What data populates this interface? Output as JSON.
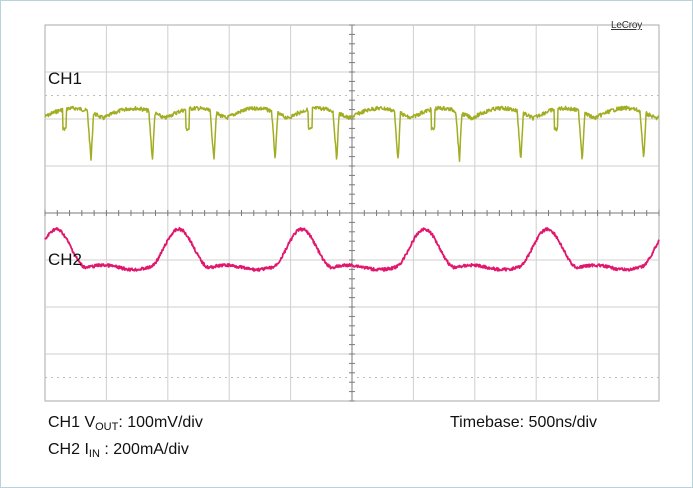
{
  "brand": "LeCroy",
  "chart_data": {
    "type": "line",
    "title": "",
    "grid": true,
    "grid_divisions": {
      "x": 10,
      "y": 8
    },
    "x_time_ns": [
      0,
      250,
      500,
      750,
      1000,
      1250,
      1500,
      1750,
      2000,
      2250,
      2500,
      2750,
      3000,
      3250,
      3500,
      3750,
      4000,
      4250,
      4500,
      4750,
      5000
    ],
    "series": [
      {
        "name": "CH1",
        "color": "#a2ad22",
        "waveform": "ripple with sharp negative spikes",
        "period_ns": 500,
        "approx_offset_div": 2.1,
        "approx_ripple_div": 0.9
      },
      {
        "name": "CH2",
        "color": "#e0176d",
        "waveform": "alternating large and small peaks",
        "period_ns": 500,
        "approx_offset_div": -1.2,
        "approx_amplitude_div": 0.9
      }
    ],
    "captions": {
      "ch1_prefix": "CH1 V",
      "ch1_sub": "OUT",
      "ch1_scale": ": 100mV/div",
      "ch2_prefix": "CH2 I",
      "ch2_sub": "IN",
      "ch2_scale": " : 200mA/div",
      "timebase": "Timebase: 500ns/div"
    }
  }
}
